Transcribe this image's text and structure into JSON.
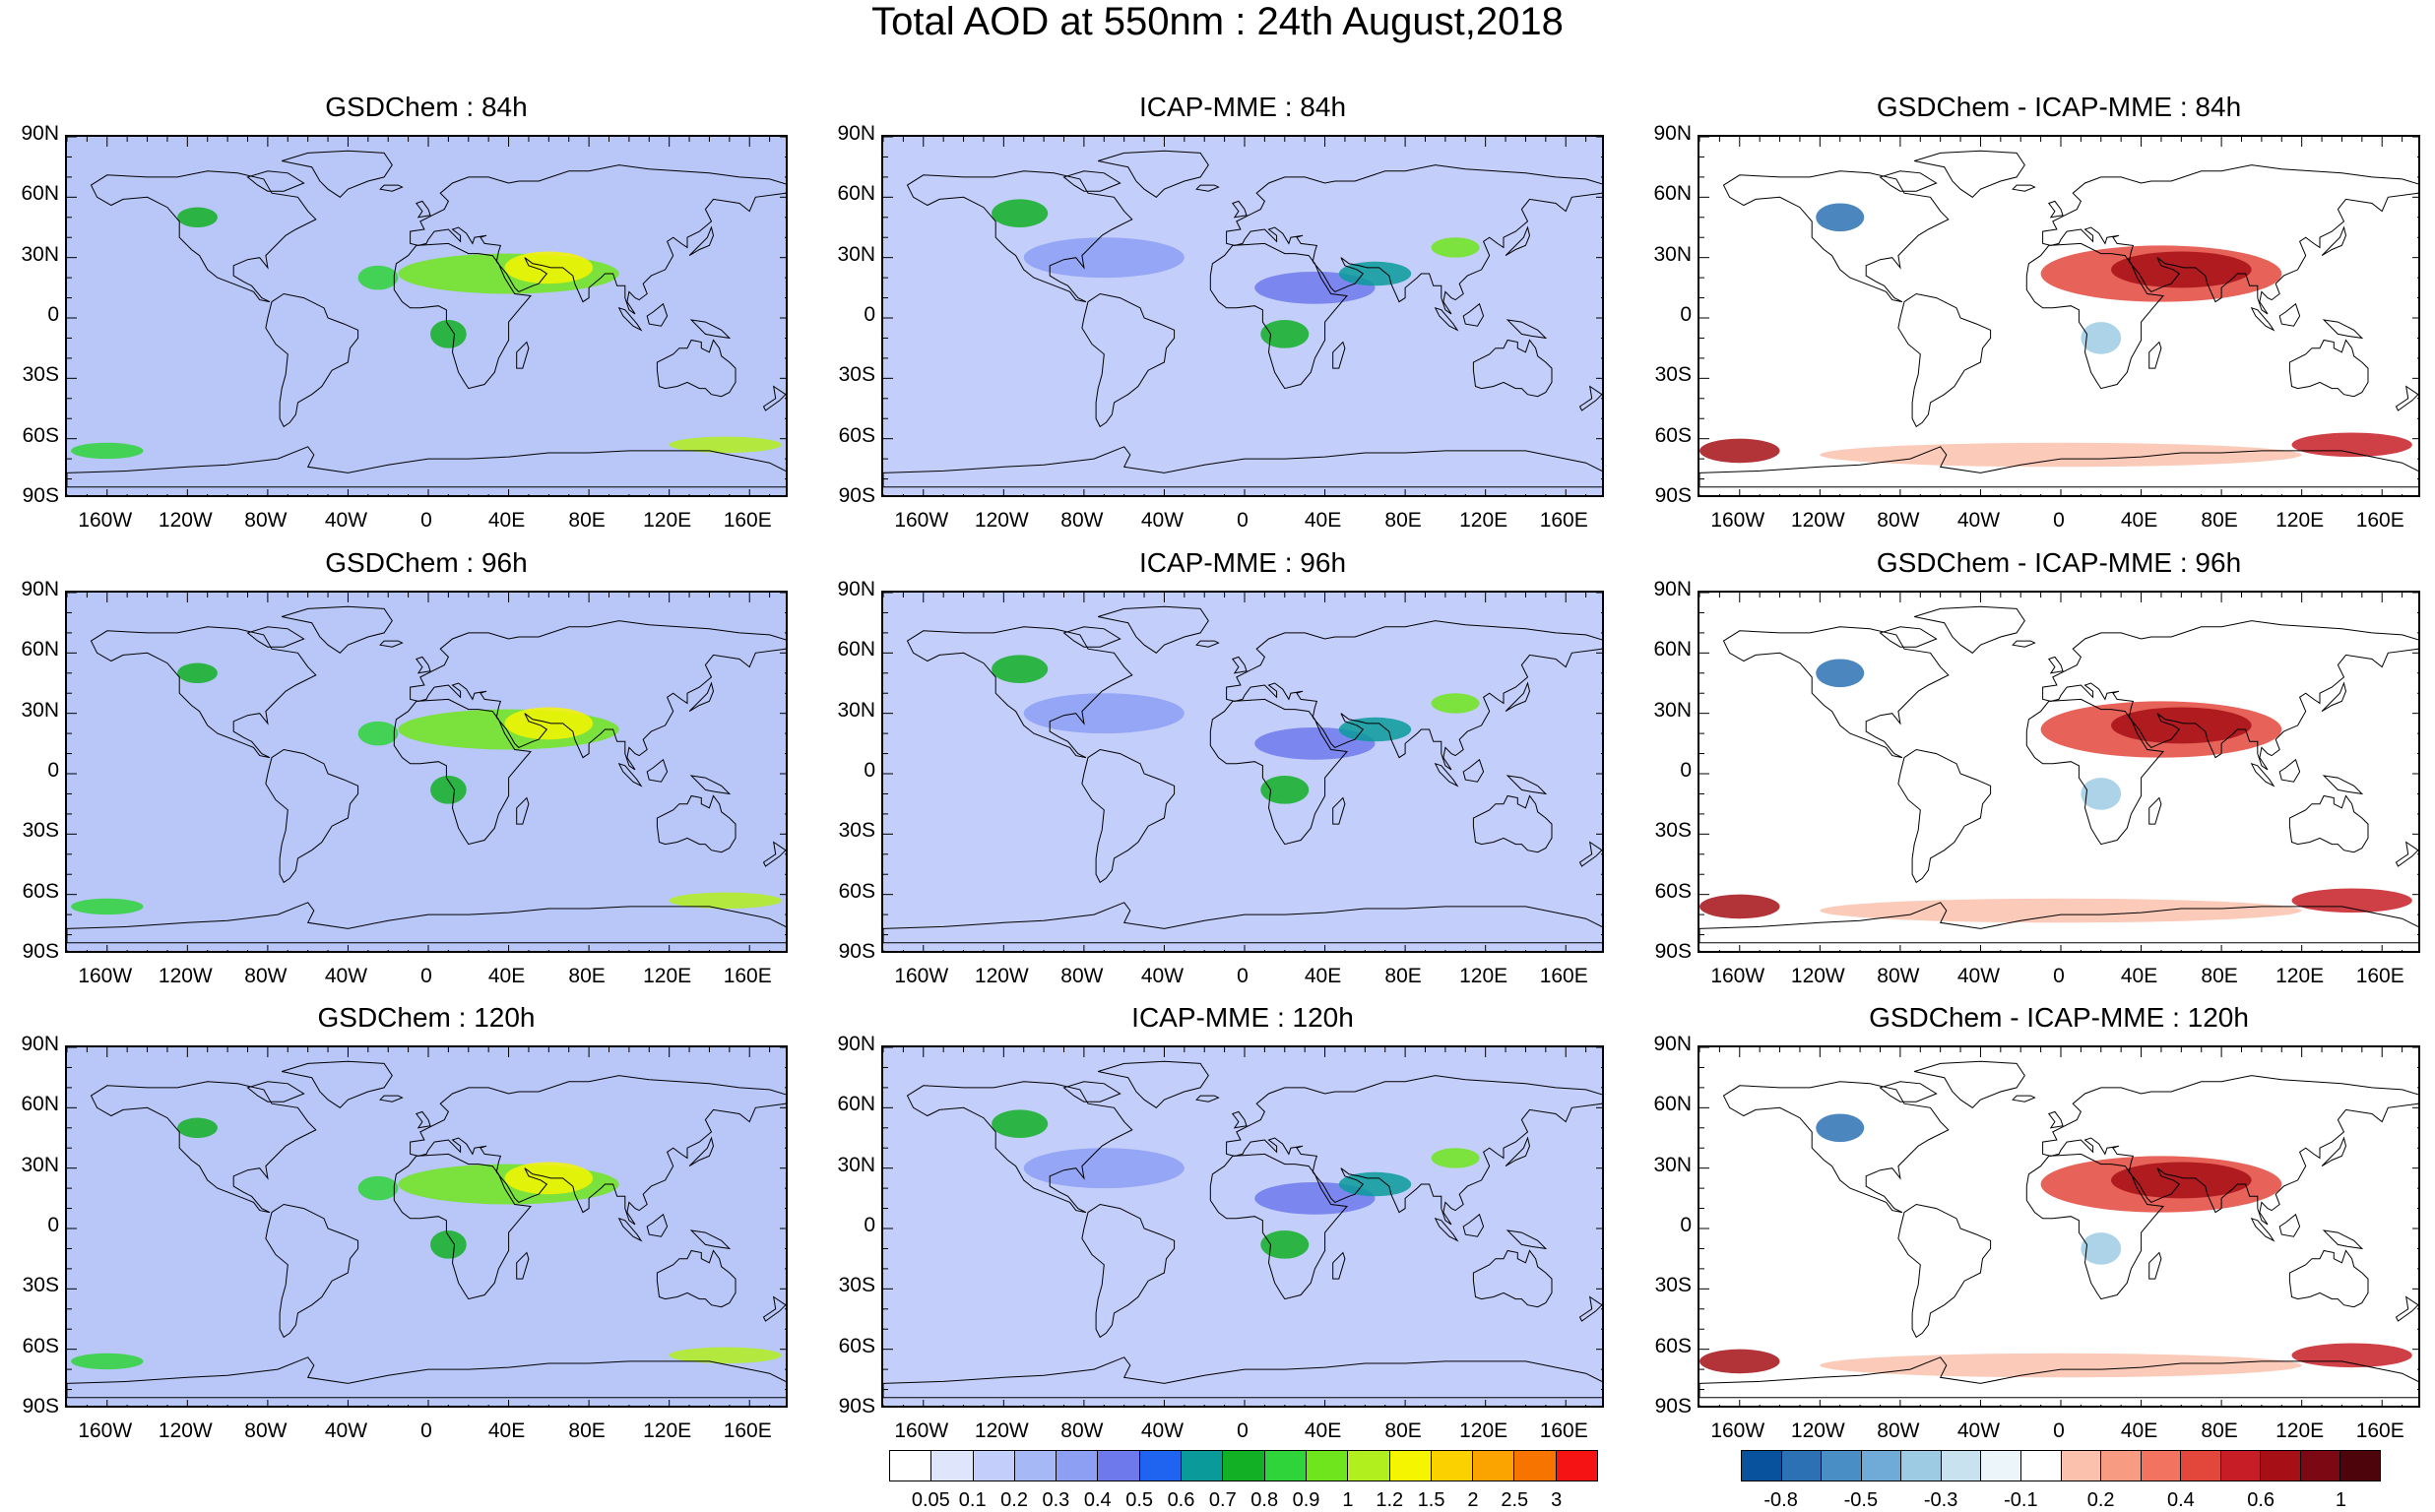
{
  "title": "Total AOD at 550nm : 24th August,2018",
  "x_ticks": [
    "160W",
    "120W",
    "80W",
    "40W",
    "0",
    "40E",
    "80E",
    "120E",
    "160E"
  ],
  "y_ticks": [
    "90N",
    "60N",
    "30N",
    "0",
    "30S",
    "60S",
    "90S"
  ],
  "panels": [
    {
      "title": "GSDChem : 84h",
      "kind": "gsd"
    },
    {
      "title": "ICAP-MME : 84h",
      "kind": "icap"
    },
    {
      "title": "GSDChem - ICAP-MME : 84h",
      "kind": "diff"
    },
    {
      "title": "GSDChem : 96h",
      "kind": "gsd"
    },
    {
      "title": "ICAP-MME : 96h",
      "kind": "icap"
    },
    {
      "title": "GSDChem - ICAP-MME : 96h",
      "kind": "diff"
    },
    {
      "title": "GSDChem : 120h",
      "kind": "gsd"
    },
    {
      "title": "ICAP-MME : 120h",
      "kind": "icap"
    },
    {
      "title": "GSDChem - ICAP-MME : 120h",
      "kind": "diff"
    }
  ],
  "aod_colorbar": {
    "labels": [
      "0.05",
      "0.1",
      "0.2",
      "0.3",
      "0.4",
      "0.5",
      "0.6",
      "0.7",
      "0.8",
      "0.9",
      "1",
      "1.2",
      "1.5",
      "2",
      "2.5",
      "3"
    ],
    "colors": [
      "#ffffff",
      "#dfe5fb",
      "#c3cefa",
      "#a7b8f7",
      "#8c9ff3",
      "#6e79ec",
      "#1e64f0",
      "#0a9a9a",
      "#12b025",
      "#2ed43a",
      "#6ee51c",
      "#b2ef1f",
      "#f5f500",
      "#fbd200",
      "#fba400",
      "#f87400",
      "#f51313"
    ]
  },
  "diff_colorbar": {
    "labels": [
      "-0.8",
      "-0.5",
      "-0.3",
      "-0.1",
      "0.2",
      "0.4",
      "0.6",
      "1"
    ],
    "colors": [
      "#08519c",
      "#2b71b3",
      "#4a8ec6",
      "#6fabd6",
      "#9dcbe3",
      "#c8e2ef",
      "#ecf5fa",
      "#ffffff",
      "#fcc1ad",
      "#f89b83",
      "#f2735f",
      "#e3473c",
      "#c71d26",
      "#a50f15",
      "#7b0813",
      "#4d050b"
    ]
  }
}
